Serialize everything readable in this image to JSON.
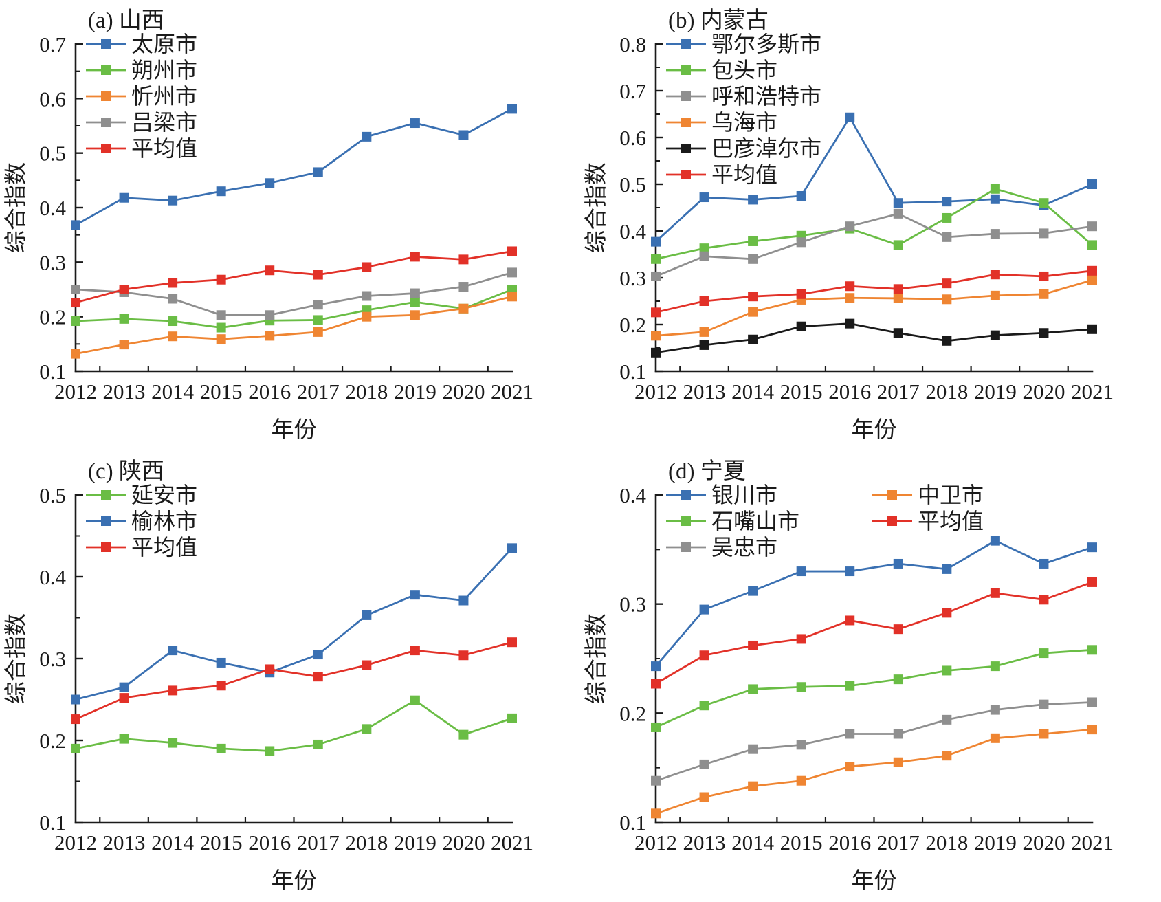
{
  "figure": {
    "background": "#ffffff",
    "text_color": "#1a1a1a",
    "axis_color": "#1a1a1a",
    "palette": {
      "blue": "#3a70b2",
      "green": "#6abd45",
      "orange": "#ef8532",
      "gray": "#8f8f8f",
      "red": "#e23128",
      "black": "#1a1a1a"
    }
  },
  "chart_data": [
    {
      "type": "line",
      "title": "(a) 山西",
      "xlabel": "年份",
      "ylabel": "综合指数",
      "ylim": [
        0.1,
        0.7
      ],
      "ytick_step": 0.1,
      "grid": false,
      "legend_position": "top-left-inside",
      "legend_layout": [
        [
          0,
          1,
          2,
          3,
          4
        ]
      ],
      "x": [
        "2012",
        "2013",
        "2014",
        "2015",
        "2016",
        "2017",
        "2018",
        "2019",
        "2020",
        "2021"
      ],
      "series": [
        {
          "name": "太原市",
          "color": "#3a70b2",
          "values": [
            0.368,
            0.418,
            0.413,
            0.43,
            0.445,
            0.465,
            0.53,
            0.555,
            0.533,
            0.581
          ]
        },
        {
          "name": "朔州市",
          "color": "#6abd45",
          "values": [
            0.192,
            0.196,
            0.192,
            0.18,
            0.193,
            0.194,
            0.212,
            0.227,
            0.215,
            0.25
          ]
        },
        {
          "name": "忻州市",
          "color": "#ef8532",
          "values": [
            0.132,
            0.149,
            0.164,
            0.159,
            0.165,
            0.172,
            0.2,
            0.203,
            0.215,
            0.237
          ]
        },
        {
          "name": "吕梁市",
          "color": "#8f8f8f",
          "values": [
            0.25,
            0.245,
            0.233,
            0.203,
            0.203,
            0.222,
            0.238,
            0.243,
            0.255,
            0.281
          ]
        },
        {
          "name": "平均值",
          "color": "#e23128",
          "values": [
            0.226,
            0.25,
            0.262,
            0.268,
            0.285,
            0.277,
            0.291,
            0.31,
            0.305,
            0.32
          ]
        }
      ]
    },
    {
      "type": "line",
      "title": "(b) 内蒙古",
      "xlabel": "年份",
      "ylabel": "综合指数",
      "ylim": [
        0.1,
        0.8
      ],
      "ytick_step": 0.1,
      "grid": false,
      "legend_position": "top-left-inside",
      "legend_layout": [
        [
          0,
          1,
          2,
          3,
          4,
          5
        ]
      ],
      "x": [
        "2012",
        "2013",
        "2014",
        "2015",
        "2016",
        "2017",
        "2018",
        "2019",
        "2020",
        "2021"
      ],
      "series": [
        {
          "name": "鄂尔多斯市",
          "color": "#3a70b2",
          "values": [
            0.377,
            0.472,
            0.467,
            0.475,
            0.643,
            0.46,
            0.463,
            0.468,
            0.455,
            0.5
          ]
        },
        {
          "name": "包头市",
          "color": "#6abd45",
          "values": [
            0.34,
            0.363,
            0.378,
            0.39,
            0.405,
            0.37,
            0.428,
            0.49,
            0.46,
            0.37
          ]
        },
        {
          "name": "呼和浩特市",
          "color": "#8f8f8f",
          "values": [
            0.303,
            0.346,
            0.34,
            0.376,
            0.41,
            0.437,
            0.387,
            0.394,
            0.395,
            0.41
          ]
        },
        {
          "name": "乌海市",
          "color": "#ef8532",
          "values": [
            0.176,
            0.184,
            0.227,
            0.253,
            0.257,
            0.256,
            0.254,
            0.262,
            0.265,
            0.295
          ]
        },
        {
          "name": "巴彦淖尔市",
          "color": "#1a1a1a",
          "values": [
            0.14,
            0.156,
            0.168,
            0.196,
            0.202,
            0.182,
            0.165,
            0.177,
            0.182,
            0.19
          ]
        },
        {
          "name": "平均值",
          "color": "#e23128",
          "values": [
            0.226,
            0.25,
            0.26,
            0.265,
            0.282,
            0.276,
            0.288,
            0.307,
            0.303,
            0.315
          ]
        }
      ]
    },
    {
      "type": "line",
      "title": "(c) 陕西",
      "xlabel": "年份",
      "ylabel": "综合指数",
      "ylim": [
        0.1,
        0.5
      ],
      "ytick_step": 0.1,
      "grid": false,
      "legend_position": "top-left-inside",
      "legend_layout": [
        [
          0,
          1,
          2
        ]
      ],
      "x": [
        "2012",
        "2013",
        "2014",
        "2015",
        "2016",
        "2017",
        "2018",
        "2019",
        "2020",
        "2021"
      ],
      "series": [
        {
          "name": "延安市",
          "color": "#6abd45",
          "values": [
            0.19,
            0.202,
            0.197,
            0.19,
            0.187,
            0.195,
            0.214,
            0.249,
            0.207,
            0.227
          ]
        },
        {
          "name": "榆林市",
          "color": "#3a70b2",
          "values": [
            0.25,
            0.265,
            0.31,
            0.295,
            0.283,
            0.305,
            0.353,
            0.378,
            0.371,
            0.435
          ]
        },
        {
          "name": "平均值",
          "color": "#e23128",
          "values": [
            0.226,
            0.252,
            0.261,
            0.267,
            0.287,
            0.278,
            0.292,
            0.31,
            0.304,
            0.32
          ]
        }
      ]
    },
    {
      "type": "line",
      "title": "(d) 宁夏",
      "xlabel": "年份",
      "ylabel": "综合指数",
      "ylim": [
        0.1,
        0.4
      ],
      "ytick_step": 0.1,
      "grid": false,
      "legend_position": "top-left-inside",
      "legend_layout": [
        [
          0,
          1,
          2
        ],
        [
          3,
          4
        ]
      ],
      "x": [
        "2012",
        "2013",
        "2014",
        "2015",
        "2016",
        "2017",
        "2018",
        "2019",
        "2020",
        "2021"
      ],
      "series": [
        {
          "name": "银川市",
          "color": "#3a70b2",
          "values": [
            0.243,
            0.295,
            0.312,
            0.33,
            0.33,
            0.337,
            0.332,
            0.358,
            0.337,
            0.352
          ]
        },
        {
          "name": "石嘴山市",
          "color": "#6abd45",
          "values": [
            0.187,
            0.207,
            0.222,
            0.224,
            0.225,
            0.231,
            0.239,
            0.243,
            0.255,
            0.258
          ]
        },
        {
          "name": "吴忠市",
          "color": "#8f8f8f",
          "values": [
            0.138,
            0.153,
            0.167,
            0.171,
            0.181,
            0.181,
            0.194,
            0.203,
            0.208,
            0.21
          ]
        },
        {
          "name": "中卫市",
          "color": "#ef8532",
          "values": [
            0.108,
            0.123,
            0.133,
            0.138,
            0.151,
            0.155,
            0.161,
            0.177,
            0.181,
            0.185
          ]
        },
        {
          "name": "平均值",
          "color": "#e23128",
          "values": [
            0.227,
            0.253,
            0.262,
            0.268,
            0.285,
            0.277,
            0.292,
            0.31,
            0.304,
            0.32
          ]
        }
      ]
    }
  ]
}
